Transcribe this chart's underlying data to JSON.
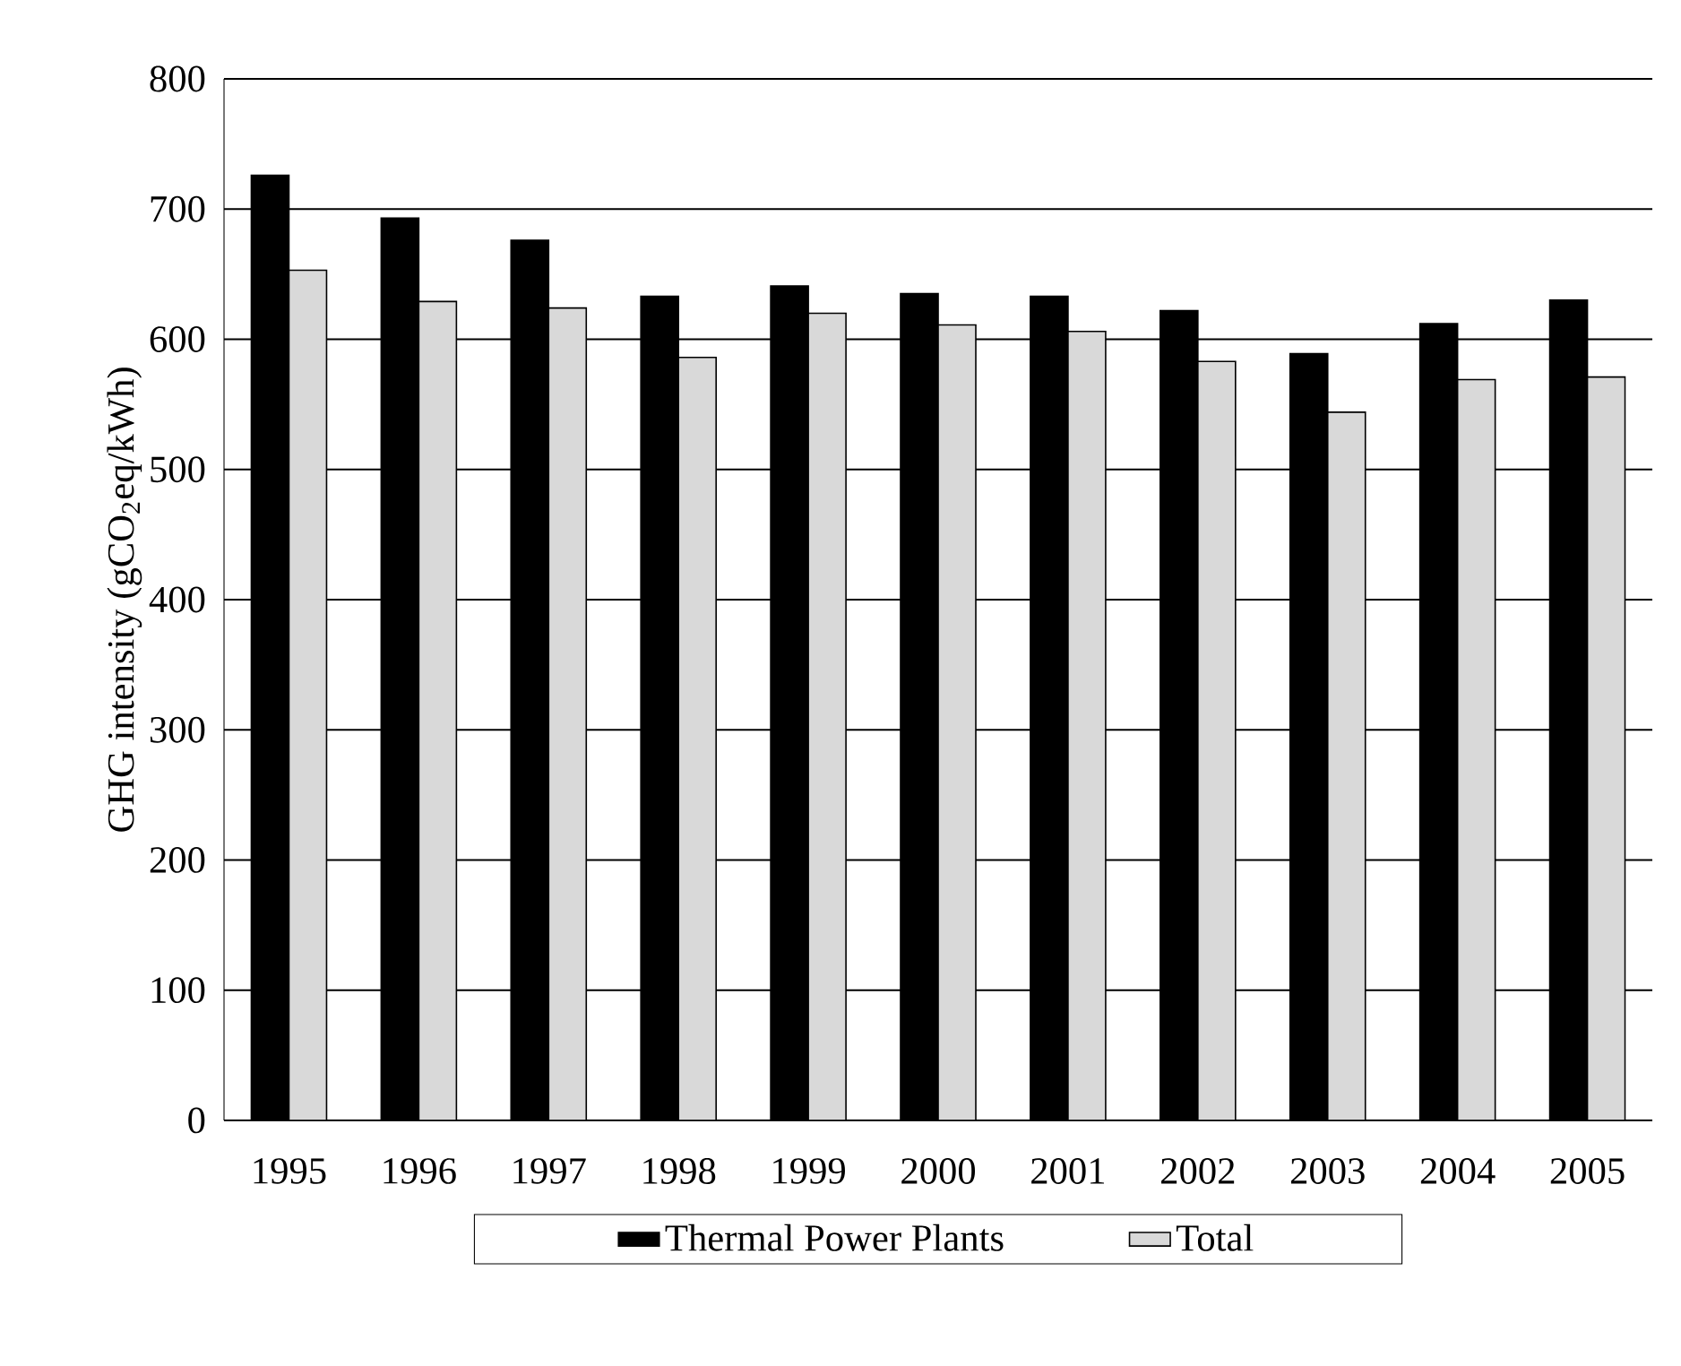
{
  "chart_data": {
    "type": "bar",
    "ylabel": "GHG intensity (gCO$_{2}$eq/kWh)",
    "categories": [
      "1995",
      "1996",
      "1997",
      "1998",
      "1999",
      "2000",
      "2001",
      "2002",
      "2003",
      "2004",
      "2005"
    ],
    "series": [
      {
        "name": "Thermal Power Plants",
        "color": "#000000",
        "values": [
          726,
          693,
          676,
          633,
          641,
          635,
          633,
          622,
          589,
          612,
          630
        ]
      },
      {
        "name": "Total",
        "color": "#d9d9d9",
        "values": [
          653,
          629,
          624,
          586,
          620,
          611,
          606,
          583,
          544,
          569,
          571
        ]
      }
    ],
    "ylim": [
      0,
      800
    ],
    "yticks": [
      0,
      100,
      200,
      300,
      400,
      500,
      600,
      700,
      800
    ],
    "grid": "y",
    "legend": "bottom"
  }
}
